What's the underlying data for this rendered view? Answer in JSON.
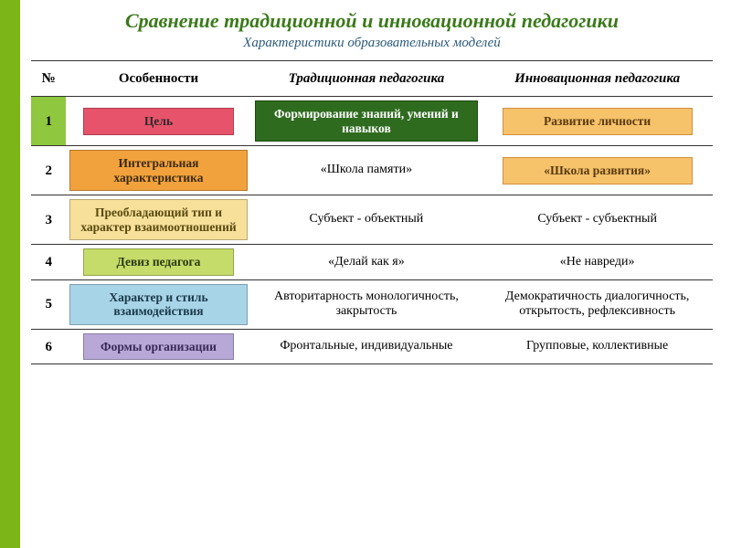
{
  "title_color": "#3a7a1a",
  "subtitle_color": "#2a5a7a",
  "title": "Сравнение традиционной и инновационной педагогики",
  "subtitle": "Характеристики образовательных моделей",
  "headers": {
    "num": "№",
    "feature": "Особенности",
    "traditional": "Традиционная  педагогика",
    "innovative": "Инновационная педагогика"
  },
  "rows": [
    {
      "n": "1",
      "feature": "Цель",
      "trad": "Формирование знаний, умений и навыков",
      "inno": "Развитие личности"
    },
    {
      "n": "2",
      "feature": "Интегральная характеристика",
      "trad": "«Школа памяти»",
      "inno": "«Школа развития»"
    },
    {
      "n": "3",
      "feature": "Преобладающий тип и характер взаимоотношений",
      "trad": "Субъект - объектный",
      "inno": "Субъект - субъектный"
    },
    {
      "n": "4",
      "feature": "Девиз педагога",
      "trad": "«Делай как я»",
      "inno": "«Не навреди»"
    },
    {
      "n": "5",
      "feature": "Характер и стиль взаимодействия",
      "trad": "Авторитарность монологичность, закрытость",
      "inno": "Демократичность диалогичность,  открытость, рефлексивность"
    },
    {
      "n": "6",
      "feature": "Формы организации",
      "trad": "Фронтальные, индивидуальные",
      "inno": "Групповые, коллективные"
    }
  ],
  "pill_colors": {
    "row1": "#e7536a",
    "row2": "#f2a23c",
    "row3": "#f6e09a",
    "row4": "#c6dc6a",
    "row5": "#a8d4e8",
    "row6": "#b8a8d8",
    "row1_trad": "#2e6b1e",
    "highlight": "#f6c26a"
  }
}
